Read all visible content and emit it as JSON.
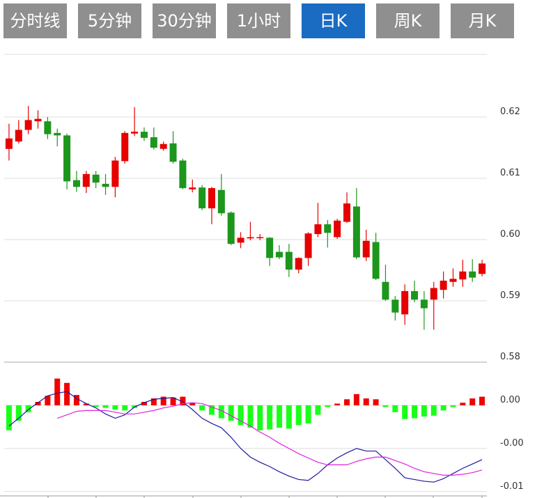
{
  "tabs": [
    "分时线",
    "5分钟",
    "30分钟",
    "1小时",
    "日K",
    "周K",
    "月K"
  ],
  "active_tab": 4,
  "tab_color": "#8f8f8f",
  "active_tab_color": "#1a6bc2",
  "chart_data": [
    {
      "type": "candlestick",
      "up_color": "#e60000",
      "down_color": "#1c961c",
      "grid": true,
      "ylim": [
        0.58,
        0.63
      ],
      "yticks": [
        0.58,
        0.59,
        {
          "value": 0.6,
          "label": "0.60"
        },
        0.61,
        0.62
      ],
      "open": [
        0.6148,
        0.616,
        0.6179,
        0.6193,
        0.6193,
        0.6174,
        0.617,
        0.6097,
        0.6086,
        0.6106,
        0.6091,
        0.6086,
        0.6128,
        0.6173,
        0.6176,
        0.6167,
        0.6148,
        0.6157,
        0.6129,
        0.6082,
        0.6085,
        0.6051,
        0.6081,
        0.6044,
        0.5995,
        0.6002,
        0.6003,
        0.6003,
        0.598,
        0.598,
        0.5951,
        0.597,
        0.6009,
        0.6025,
        0.6004,
        0.6029,
        0.6054,
        0.5971,
        0.5996,
        0.5931,
        0.5902,
        0.5878,
        0.5916,
        0.5902,
        0.5902,
        0.5918,
        0.5931,
        0.5935,
        0.5948,
        0.5944
      ],
      "close": [
        0.6165,
        0.6179,
        0.6195,
        0.6197,
        0.6172,
        0.617,
        0.6095,
        0.6086,
        0.6107,
        0.6093,
        0.6086,
        0.6129,
        0.6174,
        0.6176,
        0.6166,
        0.615,
        0.6156,
        0.6127,
        0.6084,
        0.6085,
        0.6051,
        0.6084,
        0.6043,
        0.5993,
        0.6003,
        0.6004,
        0.6004,
        0.597,
        0.5971,
        0.5951,
        0.597,
        0.601,
        0.6025,
        0.6011,
        0.6031,
        0.6059,
        0.5971,
        0.5998,
        0.5936,
        0.5902,
        0.5881,
        0.5916,
        0.5902,
        0.5888,
        0.5921,
        0.5933,
        0.5936,
        0.5948,
        0.5938,
        0.5961
      ],
      "high": [
        0.6189,
        0.6195,
        0.6218,
        0.6211,
        0.62,
        0.6181,
        0.6173,
        0.6112,
        0.6112,
        0.6112,
        0.6107,
        0.6135,
        0.6177,
        0.6216,
        0.6183,
        0.6183,
        0.616,
        0.6177,
        0.6132,
        0.6098,
        0.6089,
        0.6086,
        0.6107,
        0.6046,
        0.6012,
        0.6029,
        0.6009,
        0.6004,
        0.5991,
        0.5993,
        0.5971,
        0.6012,
        0.606,
        0.6032,
        0.6034,
        0.6077,
        0.6084,
        0.6016,
        0.6011,
        0.5959,
        0.5908,
        0.5927,
        0.5933,
        0.5916,
        0.5931,
        0.5948,
        0.5953,
        0.5967,
        0.5968,
        0.5967
      ],
      "low": [
        0.6129,
        0.6157,
        0.6172,
        0.6181,
        0.6164,
        0.6152,
        0.6082,
        0.6078,
        0.6076,
        0.6084,
        0.6073,
        0.6069,
        0.6124,
        0.6169,
        0.6161,
        0.6147,
        0.6145,
        0.6124,
        0.6082,
        0.6077,
        0.6048,
        0.6025,
        0.6039,
        0.5991,
        0.5986,
        0.5999,
        0.5999,
        0.5957,
        0.5968,
        0.5939,
        0.5945,
        0.5957,
        0.6004,
        0.5987,
        0.6001,
        0.6027,
        0.5968,
        0.5965,
        0.5934,
        0.59,
        0.5868,
        0.5861,
        0.5898,
        0.5853,
        0.5853,
        0.5904,
        0.5923,
        0.5923,
        0.5931,
        0.594
      ]
    },
    {
      "type": "macd",
      "positive_color": "#f20000",
      "negative_color": "#1aff1a",
      "grid": true,
      "ylim": [
        -0.0105,
        0.005
      ],
      "yticks": [
        {
          "value": 0,
          "label": "0.00"
        },
        {
          "value": -0.005,
          "label": "-0.00"
        },
        {
          "value": -0.01,
          "label": "-0.01"
        }
      ],
      "histogram": [
        -0.0029,
        -0.0018,
        -0.0008,
        0.0004,
        0.0011,
        0.0031,
        0.0026,
        0.0012,
        0.0002,
        -0.0002,
        -0.0003,
        -0.0005,
        -0.0006,
        -0.0003,
        0.0004,
        0.0008,
        0.001,
        0.0009,
        0.001,
        0.0003,
        -0.0006,
        -0.0011,
        -0.0015,
        -0.0018,
        -0.0023,
        -0.0026,
        -0.0029,
        -0.0028,
        -0.0026,
        -0.0027,
        -0.0023,
        -0.0021,
        -0.0011,
        -0.0002,
        0.0002,
        0.0007,
        0.0013,
        0.0008,
        0.0007,
        -0.0002,
        -0.0008,
        -0.0016,
        -0.0015,
        -0.0013,
        -0.0012,
        -0.0006,
        -0.0002,
        0.0003,
        0.0008,
        0.001
      ],
      "lines": [
        {
          "color": "#1a1aa0",
          "values": [
            -0.0024,
            -0.0015,
            -0.0005,
            0.0003,
            0.0011,
            0.0014,
            0.0016,
            0.0008,
            0.0002,
            -0.0003,
            -0.001,
            -0.0015,
            -0.0011,
            -0.0002,
            0.0003,
            0.0007,
            0.0008,
            0.0009,
            0.0004,
            -0.0005,
            -0.0015,
            -0.0021,
            -0.0026,
            -0.0037,
            -0.005,
            -0.006,
            -0.0066,
            -0.0071,
            -0.0077,
            -0.0082,
            -0.0086,
            -0.0087,
            -0.0079,
            -0.0069,
            -0.0061,
            -0.0055,
            -0.005,
            -0.0053,
            -0.0053,
            -0.0063,
            -0.0073,
            -0.0084,
            -0.0086,
            -0.0088,
            -0.0089,
            -0.0085,
            -0.0079,
            -0.0073,
            -0.0068,
            -0.0063
          ]
        },
        {
          "color": "#e020e0",
          "values": [
            null,
            null,
            null,
            null,
            null,
            -0.0015,
            -0.0011,
            -0.0007,
            -0.0006,
            -0.0006,
            -0.0006,
            -0.0008,
            -0.001,
            -0.001,
            -0.0008,
            -0.0006,
            -0.0003,
            -0.0001,
            0.0002,
            0.0003,
            0.0002,
            -0.0002,
            -0.0006,
            -0.0012,
            -0.0018,
            -0.0024,
            -0.0031,
            -0.0037,
            -0.0044,
            -0.005,
            -0.0056,
            -0.0061,
            -0.0066,
            -0.0069,
            -0.0069,
            -0.0069,
            -0.0065,
            -0.0062,
            -0.006,
            -0.006,
            -0.0064,
            -0.0068,
            -0.0073,
            -0.0077,
            -0.0079,
            -0.0081,
            -0.0081,
            -0.008,
            -0.0078,
            -0.0075
          ]
        }
      ]
    }
  ]
}
